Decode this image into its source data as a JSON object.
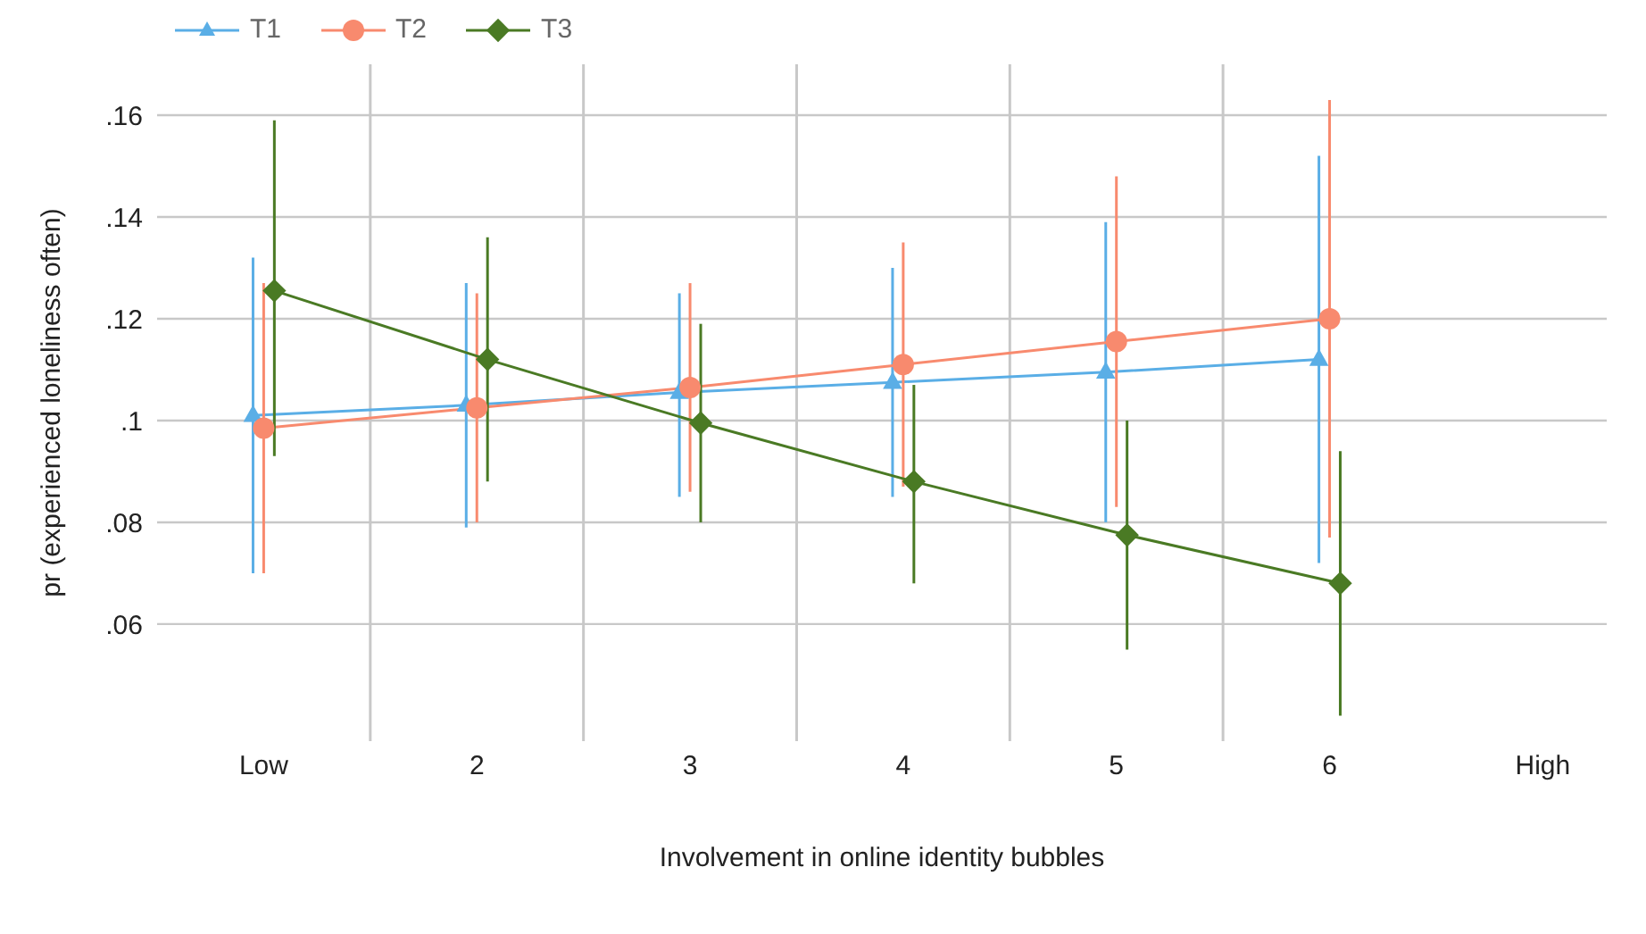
{
  "chart_data": {
    "type": "line",
    "xlabel": "Involvement in online identity bubbles",
    "ylabel": "pr (experienced loneliness often)",
    "xlim": [
      0.5,
      7.3
    ],
    "xticks": [
      {
        "value": 1,
        "label": "Low"
      },
      2,
      3,
      4,
      5,
      6,
      {
        "value": 7,
        "label": "High"
      }
    ],
    "ylim": [
      0.037,
      0.17
    ],
    "yticks": [
      {
        "value": 0.06,
        "label": ".06"
      },
      {
        "value": 0.08,
        "label": ".08"
      },
      {
        "value": 0.1,
        "label": ".1"
      },
      {
        "value": 0.12,
        "label": ".12"
      },
      {
        "value": 0.14,
        "label": ".14"
      },
      {
        "value": 0.16,
        "label": ".16"
      }
    ],
    "grid": "y",
    "legend": "top left",
    "ref_lines": [
      {
        "axis": "x",
        "value": 1.5,
        "color": "#c8c8c8"
      },
      {
        "axis": "x",
        "value": 2.5,
        "color": "#c8c8c8"
      },
      {
        "axis": "x",
        "value": 3.5,
        "color": "#c8c8c8"
      },
      {
        "axis": "x",
        "value": 4.5,
        "color": "#c8c8c8"
      },
      {
        "axis": "x",
        "value": 5.5,
        "color": "#c8c8c8"
      }
    ],
    "series": [
      {
        "name": "T1",
        "color": "#5aaee6",
        "marker": "triangle",
        "x": [
          0.95,
          1.95,
          2.95,
          3.95,
          4.95,
          5.95
        ],
        "values": [
          0.101,
          0.103,
          0.1055,
          0.1075,
          0.1095,
          0.112
        ],
        "errors": [
          [
            0.07,
            0.132
          ],
          [
            0.079,
            0.127
          ],
          [
            0.085,
            0.125
          ],
          [
            0.085,
            0.13
          ],
          [
            0.08,
            0.139
          ],
          [
            0.072,
            0.152
          ]
        ]
      },
      {
        "name": "T2",
        "color": "#f88a6e",
        "marker": "circle",
        "x": [
          1.0,
          2.0,
          3.0,
          4.0,
          5.0,
          6.0
        ],
        "values": [
          0.0985,
          0.1025,
          0.1065,
          0.111,
          0.1155,
          0.12
        ],
        "errors": [
          [
            0.07,
            0.127
          ],
          [
            0.08,
            0.125
          ],
          [
            0.086,
            0.127
          ],
          [
            0.087,
            0.135
          ],
          [
            0.083,
            0.148
          ],
          [
            0.077,
            0.163
          ]
        ]
      },
      {
        "name": "T3",
        "color": "#4a7a24",
        "marker": "diamond",
        "x": [
          1.05,
          2.05,
          3.05,
          4.05,
          5.05,
          6.05
        ],
        "values": [
          0.1255,
          0.112,
          0.0995,
          0.088,
          0.0775,
          0.068
        ],
        "errors": [
          [
            0.093,
            0.159
          ],
          [
            0.088,
            0.136
          ],
          [
            0.08,
            0.119
          ],
          [
            0.068,
            0.107
          ],
          [
            0.055,
            0.1
          ],
          [
            0.042,
            0.094
          ]
        ]
      }
    ]
  }
}
